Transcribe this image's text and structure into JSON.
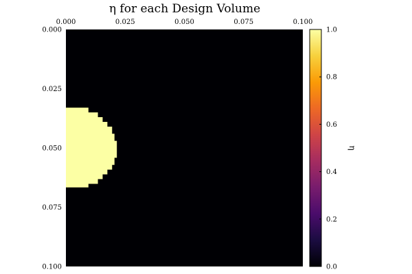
{
  "chart_data": {
    "type": "heatmap",
    "title": "η for each Design Volume",
    "x_ticks": [
      "0.000",
      "0.025",
      "0.050",
      "0.075",
      "0.100"
    ],
    "y_ticks": [
      "0.000",
      "0.025",
      "0.050",
      "0.075",
      "0.100"
    ],
    "xlim": [
      0.0,
      0.1
    ],
    "ylim": [
      0.0,
      0.1
    ],
    "y_axis_inverted": true,
    "x_axis_position": "top",
    "colorbar": {
      "label": "η",
      "range": [
        0.0,
        1.0
      ],
      "ticks": [
        "0.0",
        "0.2",
        "0.4",
        "0.6",
        "0.8",
        "1.0"
      ],
      "colormap": "inferno"
    },
    "grid_resolution": [
      100,
      100
    ],
    "background_value": 0.0,
    "region_value": 1.0,
    "region": {
      "shape": "half-disc on left edge",
      "x_range": [
        0.0,
        0.0215
      ],
      "y_range": [
        0.033,
        0.0665
      ],
      "row_extents": [
        {
          "y": [
            0.033,
            0.035
          ],
          "x": [
            0.0,
            0.0095
          ]
        },
        {
          "y": [
            0.035,
            0.037
          ],
          "x": [
            0.0,
            0.0135
          ]
        },
        {
          "y": [
            0.037,
            0.039
          ],
          "x": [
            0.0,
            0.0155
          ]
        },
        {
          "y": [
            0.039,
            0.041
          ],
          "x": [
            0.0,
            0.0175
          ]
        },
        {
          "y": [
            0.041,
            0.044
          ],
          "x": [
            0.0,
            0.0195
          ]
        },
        {
          "y": [
            0.044,
            0.047
          ],
          "x": [
            0.0,
            0.0205
          ]
        },
        {
          "y": [
            0.047,
            0.054
          ],
          "x": [
            0.0,
            0.0215
          ]
        },
        {
          "y": [
            0.054,
            0.057
          ],
          "x": [
            0.0,
            0.0205
          ]
        },
        {
          "y": [
            0.057,
            0.059
          ],
          "x": [
            0.0,
            0.0195
          ]
        },
        {
          "y": [
            0.059,
            0.061
          ],
          "x": [
            0.0,
            0.0175
          ]
        },
        {
          "y": [
            0.061,
            0.063
          ],
          "x": [
            0.0,
            0.0155
          ]
        },
        {
          "y": [
            0.063,
            0.065
          ],
          "x": [
            0.0,
            0.0135
          ]
        },
        {
          "y": [
            0.065,
            0.0665
          ],
          "x": [
            0.0,
            0.0095
          ]
        }
      ]
    },
    "colors": {
      "background": "#000004",
      "region": "#fcffa4",
      "inferno_stops": [
        "#000004",
        "#1b0c41",
        "#4a0c6b",
        "#781c6d",
        "#a52c60",
        "#cf4446",
        "#ed6925",
        "#fb9b06",
        "#f7d13d",
        "#fcffa4"
      ]
    }
  }
}
